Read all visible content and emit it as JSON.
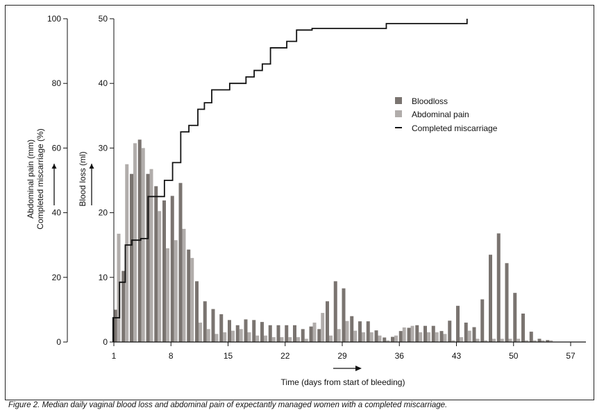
{
  "caption": "Figure 2. Median daily vaginal blood loss and abdominal pain of expectantly managed women with a completed miscarriage.",
  "colors": {
    "bloodloss": "#7a7470",
    "pain": "#b1adab",
    "line": "#111111"
  },
  "chart_data": {
    "type": "bar",
    "xlabel": "Time (days from start of bleeding)",
    "x_ticks": [
      1,
      8,
      15,
      22,
      29,
      36,
      43,
      50,
      57
    ],
    "x_range": [
      1,
      58
    ],
    "left_axis": {
      "label_line1": "Abdominal pain (mm)",
      "label_line2": "Completed miscarriage (%)",
      "range": [
        0,
        100
      ],
      "ticks": [
        0,
        20,
        40,
        60,
        80,
        100
      ]
    },
    "right_axis": {
      "label": "Blood loss (ml)",
      "range": [
        0,
        50
      ],
      "ticks": [
        0,
        10,
        20,
        30,
        40,
        50
      ]
    },
    "legend": {
      "position": "upper-right",
      "items": [
        "Bloodloss",
        "Abdominal pain",
        "Completed miscarriage"
      ]
    },
    "series": [
      {
        "name": "Bloodloss",
        "axis": "right",
        "unit": "ml",
        "days": [
          1,
          2,
          3,
          4,
          5,
          6,
          7,
          8,
          9,
          10,
          11,
          12,
          13,
          14,
          15,
          16,
          17,
          18,
          19,
          20,
          21,
          22,
          23,
          24,
          25,
          26,
          27,
          28,
          29,
          30,
          31,
          32,
          33,
          34,
          35,
          36,
          37,
          38,
          39,
          40,
          41,
          42,
          43,
          44,
          45,
          46,
          47,
          48,
          49,
          50,
          51,
          52,
          53,
          54
        ],
        "values": [
          5,
          11,
          26,
          31.3,
          26,
          24.1,
          21.9,
          22.6,
          24.6,
          14.3,
          9.4,
          6.3,
          5.1,
          4.3,
          3.4,
          2.6,
          3.5,
          3.4,
          3.1,
          2.6,
          2.6,
          2.6,
          2.6,
          2.0,
          2.4,
          2.0,
          6.3,
          9.4,
          8.3,
          4.0,
          3.2,
          3.2,
          1.8,
          0.7,
          0.8,
          1.7,
          2.2,
          2.6,
          2.5,
          2.5,
          1.7,
          3.3,
          5.6,
          3.0,
          2.3,
          6.6,
          13.5,
          16.8,
          12.2,
          7.6,
          4.4,
          1.6,
          0.5,
          0.3
        ]
      },
      {
        "name": "Abdominal pain",
        "axis": "left",
        "unit": "mm",
        "days": [
          1,
          2,
          3,
          4,
          5,
          6,
          7,
          8,
          9,
          10,
          11,
          12,
          13,
          14,
          15,
          16,
          17,
          18,
          19,
          20,
          21,
          22,
          23,
          24,
          25,
          26,
          27,
          28,
          29,
          30,
          31,
          32,
          33,
          34,
          35,
          36,
          37,
          38,
          39,
          40,
          41,
          42,
          43,
          44,
          45,
          46,
          47,
          48,
          49,
          50,
          51,
          52,
          53,
          54
        ],
        "values": [
          33.5,
          55,
          61.5,
          60,
          53.5,
          40.5,
          29,
          31.5,
          35,
          26,
          6,
          4,
          2.5,
          3,
          3.5,
          4,
          3,
          2,
          2,
          1.5,
          1.5,
          1.5,
          1.5,
          1,
          6,
          9,
          2,
          4,
          6.5,
          3.5,
          3,
          3,
          2,
          0.5,
          2,
          4.5,
          5,
          3,
          3,
          3,
          2.5,
          0.5,
          1.5,
          3.5,
          1,
          0.5,
          1,
          1,
          1,
          1,
          0.5,
          0.5,
          0.5,
          0.5
        ]
      },
      {
        "name": "Completed miscarriage",
        "type": "step",
        "axis": "left",
        "unit": "%",
        "days": [
          0.9,
          1.7,
          2.4,
          3.2,
          4.3,
          5.2,
          7.2,
          8.2,
          9.2,
          10.2,
          11.3,
          12.1,
          13.0,
          15.2,
          17.2,
          18.2,
          19.2,
          20.2,
          22.2,
          23.4,
          25.3,
          34.4,
          44.3
        ],
        "values": [
          7.5,
          18.5,
          30,
          31.5,
          32,
          45,
          50,
          55.5,
          65,
          67,
          72,
          74,
          78,
          80,
          82,
          84,
          86,
          91,
          93,
          96.5,
          97,
          98.5,
          100
        ]
      }
    ]
  }
}
